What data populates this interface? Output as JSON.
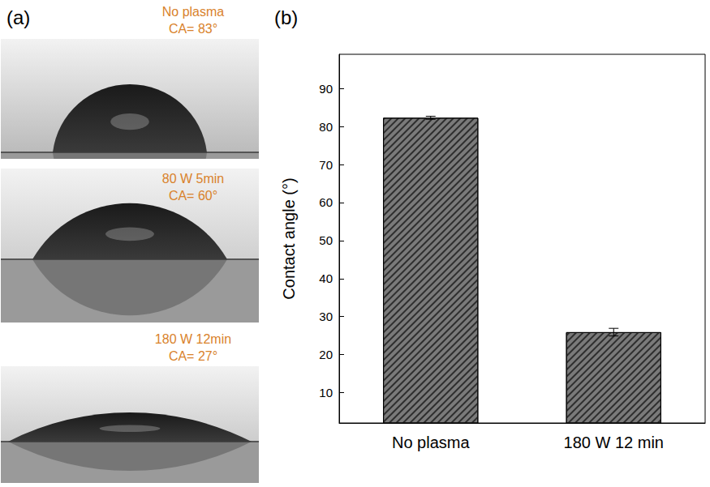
{
  "panel_a": {
    "label": "(a)",
    "droplets": [
      {
        "condition": "No plasma",
        "ca_label": "CA= 83°",
        "contact_angle": 83
      },
      {
        "condition": "80 W 5min",
        "ca_label": "CA= 60°",
        "contact_angle": 60
      },
      {
        "condition": "180 W 12min",
        "ca_label": "CA= 27°",
        "contact_angle": 27
      }
    ]
  },
  "panel_b": {
    "label": "(b)"
  },
  "chart_data": {
    "type": "bar",
    "y_label": "Contact angle (°)",
    "categories": [
      "No plasma",
      "180 W 12 min"
    ],
    "values": [
      82.3,
      25.9
    ],
    "errors": [
      0.4,
      1.0
    ],
    "color": "#7a7a7a",
    "ylim": [
      2,
      99
    ],
    "yticks": [
      10,
      20,
      30,
      40,
      50,
      60,
      70,
      80,
      90
    ],
    "grid": false
  }
}
